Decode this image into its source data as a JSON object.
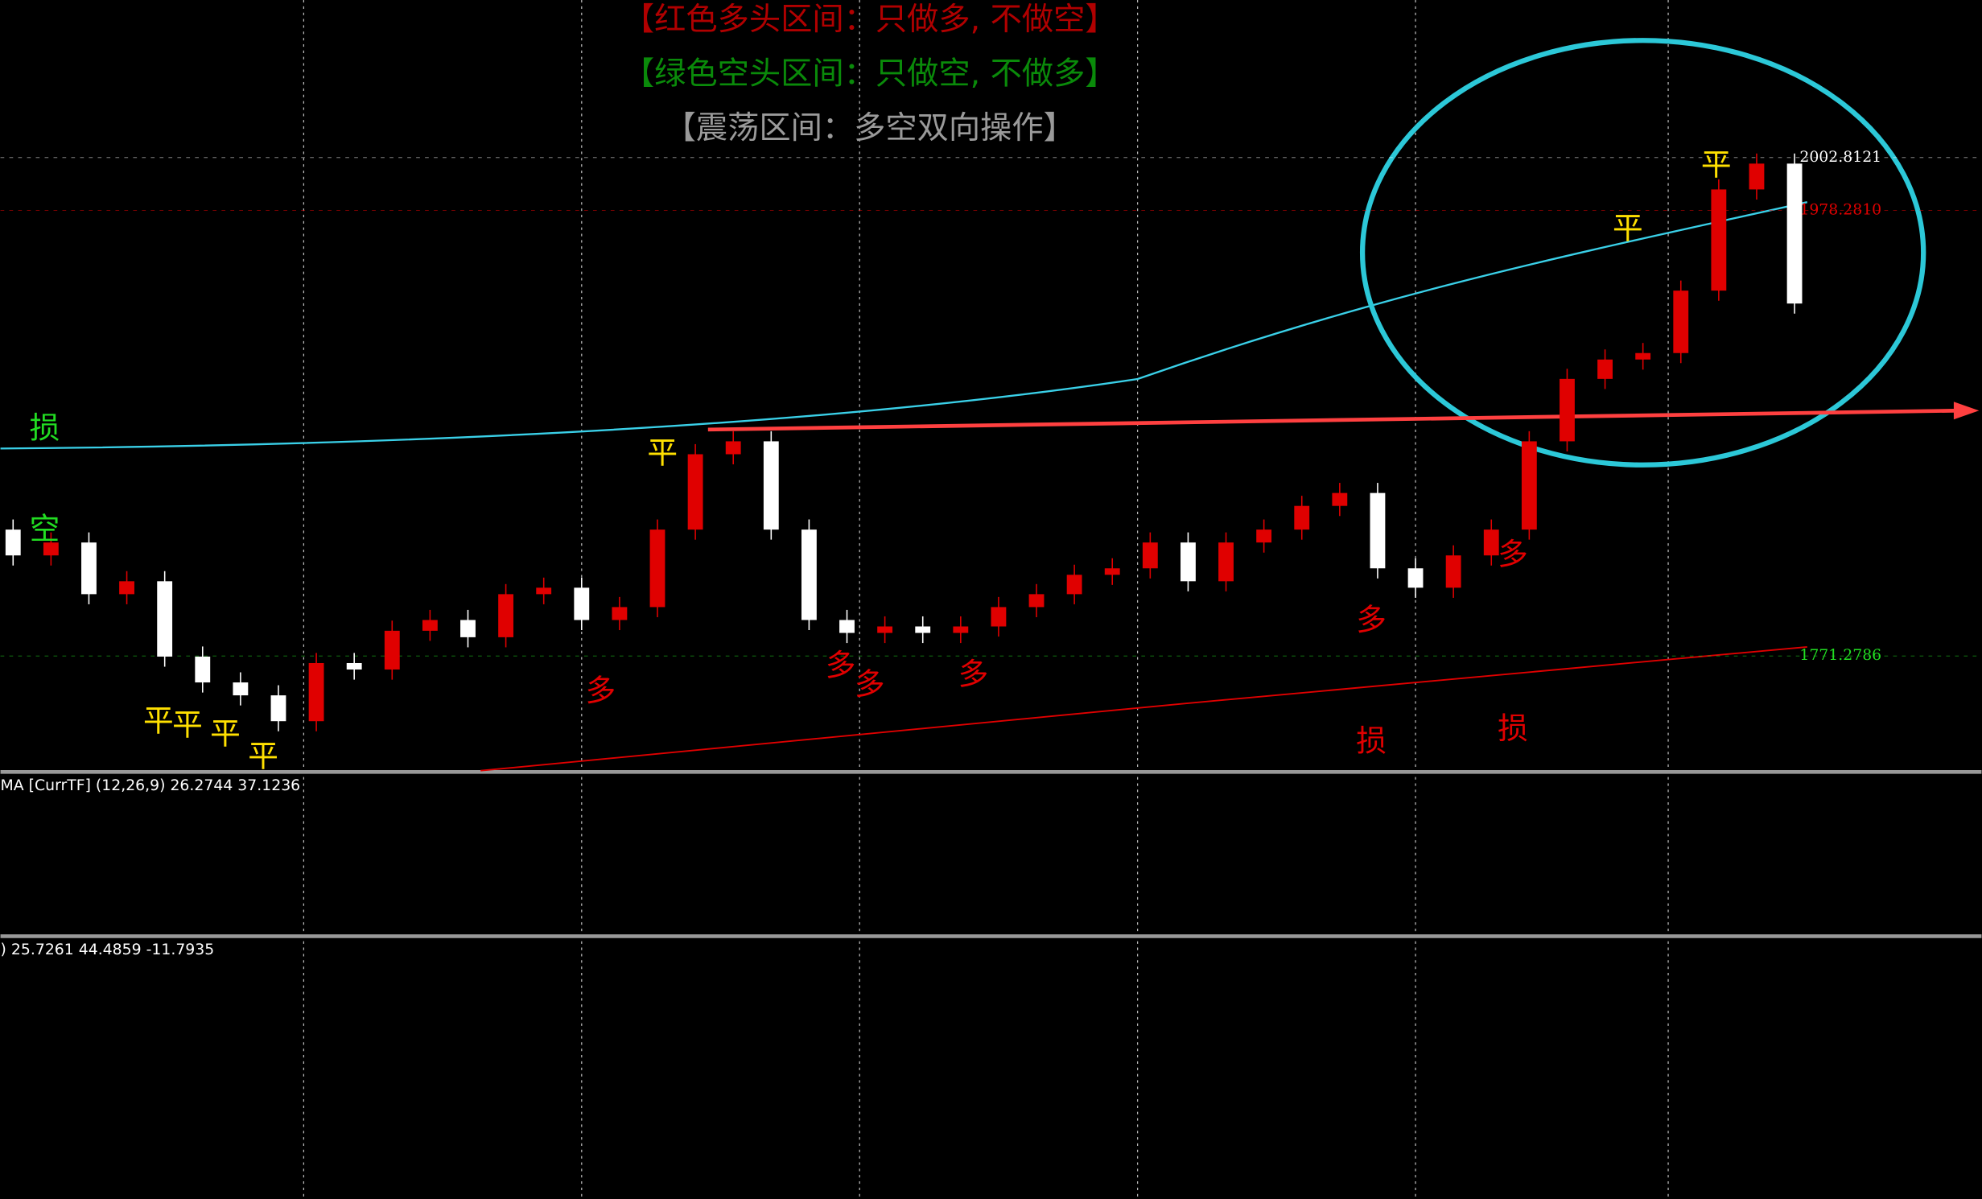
{
  "header": {
    "lines": [
      {
        "text": "【红色多头区间：只做多, 不做空】",
        "color": "#b00000"
      },
      {
        "text": "【绿色空头区间：只做空, 不做多】",
        "color": "#0a8a0a"
      },
      {
        "text": "【震荡区间：多空双向操作】",
        "color": "#9a9a9a"
      }
    ]
  },
  "chart_data": {
    "type": "candlestick",
    "open": [
      1830,
      1818,
      1824,
      1800,
      1806,
      1771,
      1759,
      1753,
      1741,
      1768,
      1765,
      1783,
      1788,
      1780,
      1800,
      1803,
      1788,
      1794,
      1830,
      1865,
      1871,
      1830,
      1788,
      1782,
      1785,
      1782,
      1785,
      1794,
      1800,
      1809,
      1812,
      1824,
      1806,
      1824,
      1830,
      1841,
      1847,
      1812,
      1803,
      1818,
      1830,
      1871,
      1900,
      1909,
      1912,
      1941,
      1988,
      2000
    ],
    "close": [
      1818,
      1824,
      1800,
      1806,
      1771,
      1759,
      1753,
      1741,
      1768,
      1765,
      1783,
      1788,
      1780,
      1800,
      1803,
      1788,
      1794,
      1830,
      1865,
      1871,
      1830,
      1788,
      1782,
      1785,
      1782,
      1785,
      1794,
      1800,
      1809,
      1812,
      1824,
      1806,
      1824,
      1830,
      1841,
      1847,
      1812,
      1803,
      1818,
      1830,
      1871,
      1900,
      1909,
      1912,
      1941,
      1988,
      2000,
      1935
    ],
    "up_color": "#e00000",
    "down_color": "#ffffff",
    "ylim": [
      1718,
      2076
    ],
    "yticks": [
      2002.8121,
      {
        "value": 1978.281,
        "label": "1978.2810"
      },
      1771.2786
    ],
    "ytick_colors": [
      "#ffffff",
      "#e00000",
      "#22dd22"
    ]
  },
  "annotations": [
    {
      "text": "损",
      "color": "#22dd22"
    },
    {
      "text": "空",
      "color": "#22dd22"
    },
    {
      "text": "平",
      "color": "#ffe000"
    },
    {
      "text": "平",
      "color": "#ffe000"
    },
    {
      "text": "平",
      "color": "#ffe000"
    },
    {
      "text": "平",
      "color": "#ffe000"
    },
    {
      "text": "平",
      "color": "#ffe000"
    },
    {
      "text": "平",
      "color": "#ffe000"
    },
    {
      "text": "平",
      "color": "#ffe000"
    },
    {
      "text": "多",
      "color": "#e00000"
    },
    {
      "text": "多",
      "color": "#e00000"
    },
    {
      "text": "多",
      "color": "#e00000"
    },
    {
      "text": "多",
      "color": "#e00000"
    },
    {
      "text": "多",
      "color": "#e00000"
    },
    {
      "text": "多",
      "color": "#e00000"
    },
    {
      "text": "损",
      "color": "#e00000"
    },
    {
      "text": "损",
      "color": "#e00000"
    }
  ],
  "indicators": {
    "macd_label": "MA [CurrTF] (12,26,9) 26.2744 37.1236",
    "kd_label": ") 25.7261 44.4859 -11.7935"
  }
}
